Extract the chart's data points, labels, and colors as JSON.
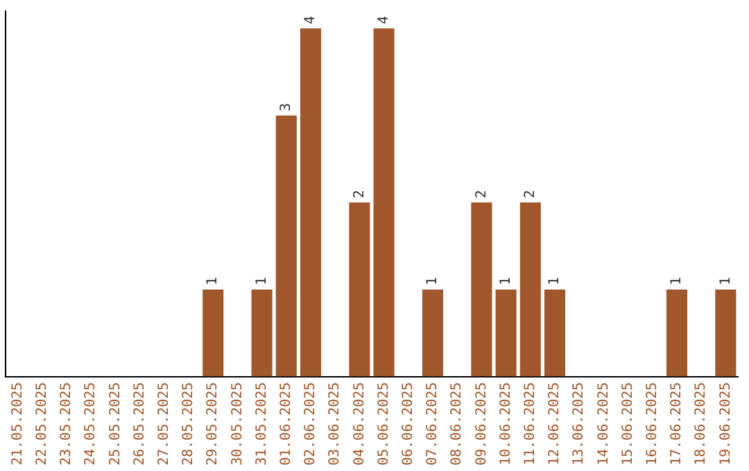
{
  "chart_data": {
    "type": "bar",
    "categories": [
      "21.05.2025",
      "22.05.2025",
      "23.05.2025",
      "24.05.2025",
      "25.05.2025",
      "26.05.2025",
      "27.05.2025",
      "28.05.2025",
      "29.05.2025",
      "30.05.2025",
      "31.05.2025",
      "01.06.2025",
      "02.06.2025",
      "03.06.2025",
      "04.06.2025",
      "05.06.2025",
      "06.06.2025",
      "07.06.2025",
      "08.06.2025",
      "09.06.2025",
      "10.06.2025",
      "11.06.2025",
      "12.06.2025",
      "13.06.2025",
      "14.06.2025",
      "15.06.2025",
      "16.06.2025",
      "17.06.2025",
      "18.06.2025",
      "19.06.2025"
    ],
    "values": [
      0,
      0,
      0,
      0,
      0,
      0,
      0,
      0,
      1,
      0,
      1,
      3,
      4,
      0,
      2,
      4,
      0,
      1,
      0,
      2,
      1,
      2,
      1,
      0,
      0,
      0,
      0,
      1,
      0,
      1
    ],
    "value_labels": [
      null,
      null,
      null,
      null,
      null,
      null,
      null,
      null,
      "1",
      null,
      "1",
      "3",
      "4",
      null,
      "2",
      "4",
      null,
      "1",
      null,
      "2",
      "1",
      "2",
      "1",
      null,
      null,
      null,
      null,
      "1",
      null,
      "1"
    ],
    "color": "#a0572b",
    "ylim": [
      0,
      4.2
    ],
    "tick_labels": "x",
    "grid": false,
    "legend": false
  }
}
